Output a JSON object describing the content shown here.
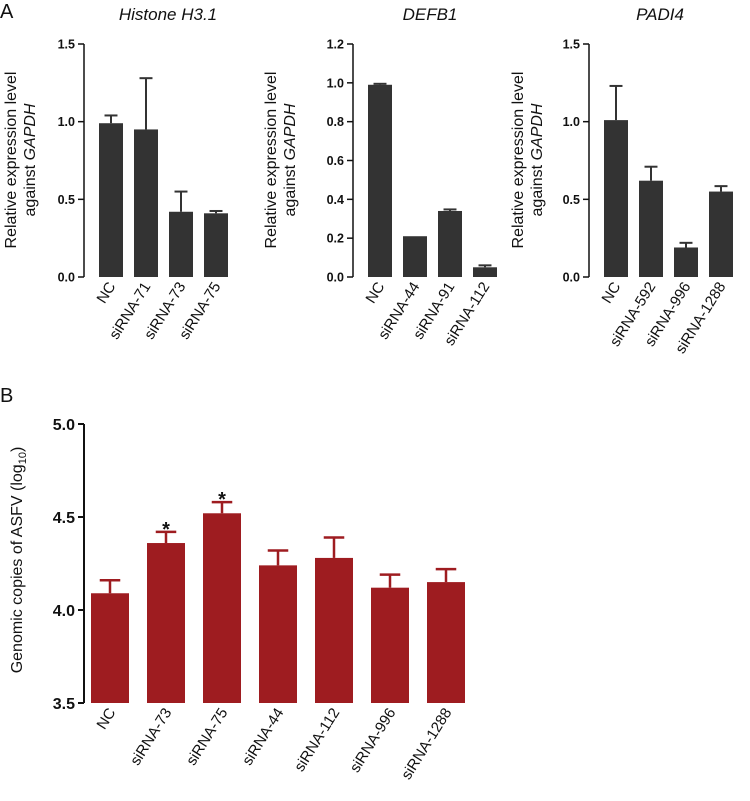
{
  "chart_data": [
    {
      "id": "A1",
      "panel": "A",
      "type": "bar",
      "title": "Histone H3.1",
      "ylabel_line1": "Relative expression level",
      "ylabel_line2_prefix": "against ",
      "ylabel_line2_gene": "GAPDH",
      "categories": [
        "NC",
        "siRNA-71",
        "siRNA-73",
        "siRNA-75"
      ],
      "values": [
        0.99,
        0.95,
        0.42,
        0.41
      ],
      "errors": [
        0.05,
        0.33,
        0.13,
        0.015
      ],
      "ylim": [
        0,
        1.5
      ],
      "yticks": [
        "0.0",
        "0.5",
        "1.0",
        "1.5"
      ],
      "color": "#333333"
    },
    {
      "id": "A2",
      "type": "bar",
      "title": "DEFB1",
      "ylabel_line1": "Relative expression level",
      "ylabel_line2_prefix": "against ",
      "ylabel_line2_gene": "GAPDH",
      "categories": [
        "NC",
        "siRNA-44",
        "siRNA-91",
        "siRNA-112"
      ],
      "values": [
        0.99,
        0.21,
        0.34,
        0.05
      ],
      "errors": [
        0.005,
        0.0,
        0.008,
        0.01
      ],
      "ylim": [
        0,
        1.2
      ],
      "yticks": [
        "0.0",
        "0.2",
        "0.4",
        "0.6",
        "0.8",
        "1.0",
        "1.2"
      ],
      "color": "#333333"
    },
    {
      "id": "A3",
      "type": "bar",
      "title": "PADI4",
      "ylabel_line1": "Relative expression level",
      "ylabel_line2_prefix": "against ",
      "ylabel_line2_gene": "GAPDH",
      "categories": [
        "NC",
        "siRNA-592",
        "siRNA-996",
        "siRNA-1288"
      ],
      "values": [
        1.01,
        0.62,
        0.19,
        0.55
      ],
      "errors": [
        0.22,
        0.09,
        0.03,
        0.035
      ],
      "ylim": [
        0,
        1.5
      ],
      "yticks": [
        "0.0",
        "0.5",
        "1.0",
        "1.5"
      ],
      "color": "#333333"
    },
    {
      "id": "B",
      "panel": "B",
      "type": "bar",
      "title": "",
      "ylabel_prefix": "Genomic copies of ASFV (log",
      "ylabel_sub": "10",
      "ylabel_suffix": ")",
      "categories": [
        "NC",
        "siRNA-73",
        "siRNA-75",
        "siRNA-44",
        "siRNA-112",
        "siRNA-996",
        "siRNA-1288"
      ],
      "values": [
        4.09,
        4.36,
        4.52,
        4.24,
        4.28,
        4.12,
        4.15
      ],
      "errors": [
        0.07,
        0.06,
        0.06,
        0.08,
        0.11,
        0.07,
        0.07
      ],
      "significance": [
        "",
        "*",
        "*",
        "",
        "",
        "",
        ""
      ],
      "ylim": [
        3.5,
        5.0
      ],
      "yticks": [
        "3.5",
        "4.0",
        "4.5",
        "5.0"
      ],
      "color": "#9e1c20"
    }
  ]
}
